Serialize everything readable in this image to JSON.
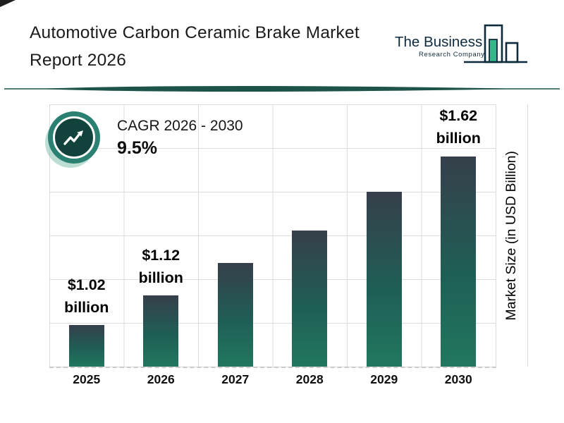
{
  "header": {
    "title_line1": "Automotive Carbon Ceramic Brake Market",
    "title_line2": "Report 2026",
    "logo": {
      "line1": "The Business",
      "line2": "Research Company"
    }
  },
  "cagr": {
    "label": "CAGR 2026 - 2030",
    "value": "9.5%"
  },
  "chart_data": {
    "type": "bar",
    "title": "Automotive Carbon Ceramic Brake Market Report 2026",
    "categories": [
      "2025",
      "2026",
      "2027",
      "2028",
      "2029",
      "2030"
    ],
    "values": [
      1.02,
      1.12,
      1.23,
      1.34,
      1.47,
      1.62
    ],
    "unit": "USD billion",
    "bar_labels": [
      {
        "index": 0,
        "value_text": "$1.02",
        "unit_text": "billion"
      },
      {
        "index": 1,
        "value_text": "$1.12",
        "unit_text": "billion"
      },
      {
        "index": 5,
        "value_text": "$1.62",
        "unit_text": "billion"
      }
    ],
    "xlabel": "",
    "ylabel": "Market Size (in USD Billion)",
    "grid": true,
    "baseline_style": "dashed",
    "legend": false,
    "visual_value_floor": 0.88,
    "bar_colors": {
      "top": "#363f4b",
      "mid": "#1f5e55",
      "bottom": "#21775f"
    }
  },
  "colors": {
    "divider": "#1d5349",
    "badge_ring": "#2b8171",
    "badge_inner": "#11423b",
    "logo_navy": "#0e2a3d",
    "logo_green": "#35b789",
    "grid": "#dcdcdc",
    "text": "#111111"
  }
}
